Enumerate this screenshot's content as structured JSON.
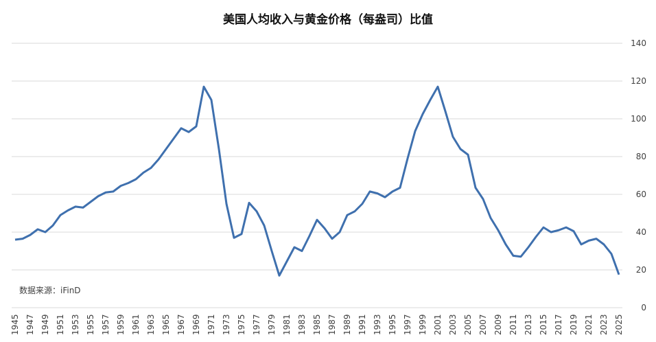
{
  "chart_data": {
    "type": "line",
    "title": "美国人均收入与黄金价格（每盎司）比值",
    "annotation": "数据来源：iFinD",
    "categories": [
      "1945",
      "1946",
      "1947",
      "1948",
      "1949",
      "1950",
      "1951",
      "1952",
      "1953",
      "1954",
      "1955",
      "1956",
      "1957",
      "1958",
      "1959",
      "1960",
      "1961",
      "1962",
      "1963",
      "1964",
      "1965",
      "1966",
      "1967",
      "1968",
      "1969",
      "1970",
      "1971",
      "1972",
      "1973",
      "1974",
      "1975",
      "1976",
      "1977",
      "1978",
      "1979",
      "1980",
      "1981",
      "1982",
      "1983",
      "1984",
      "1985",
      "1986",
      "1987",
      "1988",
      "1989",
      "1990",
      "1991",
      "1992",
      "1993",
      "1994",
      "1995",
      "1996",
      "1997",
      "1998",
      "1999",
      "2000",
      "2001",
      "2002",
      "2003",
      "2004",
      "2005",
      "2006",
      "2007",
      "2008",
      "2009",
      "2010",
      "2011",
      "2012",
      "2013",
      "2014",
      "2015",
      "2016",
      "2017",
      "2018",
      "2019",
      "2020",
      "2021",
      "2022",
      "2023",
      "2024",
      "2025"
    ],
    "series": [
      {
        "name": "比值",
        "color": "#3f70ae",
        "values": [
          36,
          36.5,
          38.5,
          41.5,
          40,
          43.5,
          49,
          51.5,
          53.5,
          53,
          56,
          59,
          61,
          61.5,
          64.5,
          66,
          68,
          71.5,
          74,
          78.5,
          84,
          89.5,
          95,
          93,
          96,
          117,
          110,
          84,
          55,
          37,
          39,
          55.5,
          51,
          43.5,
          30,
          17,
          24.5,
          32,
          30,
          38,
          46.5,
          42,
          36.5,
          40,
          49,
          51,
          55,
          61.5,
          60.5,
          58.5,
          61.5,
          63.5,
          79,
          93.5,
          102.5,
          110,
          117,
          104,
          90.5,
          84,
          81,
          63.5,
          57.5,
          47.5,
          41,
          33.5,
          27.5,
          27,
          32,
          37.5,
          42.5,
          40,
          41,
          42.5,
          40.5,
          33.5,
          35.5,
          36.5,
          33.5,
          28.5,
          17.5
        ]
      }
    ],
    "ylim": [
      0,
      140
    ],
    "yticks": [
      0,
      20,
      40,
      60,
      80,
      100,
      120,
      140
    ],
    "grid": true
  }
}
